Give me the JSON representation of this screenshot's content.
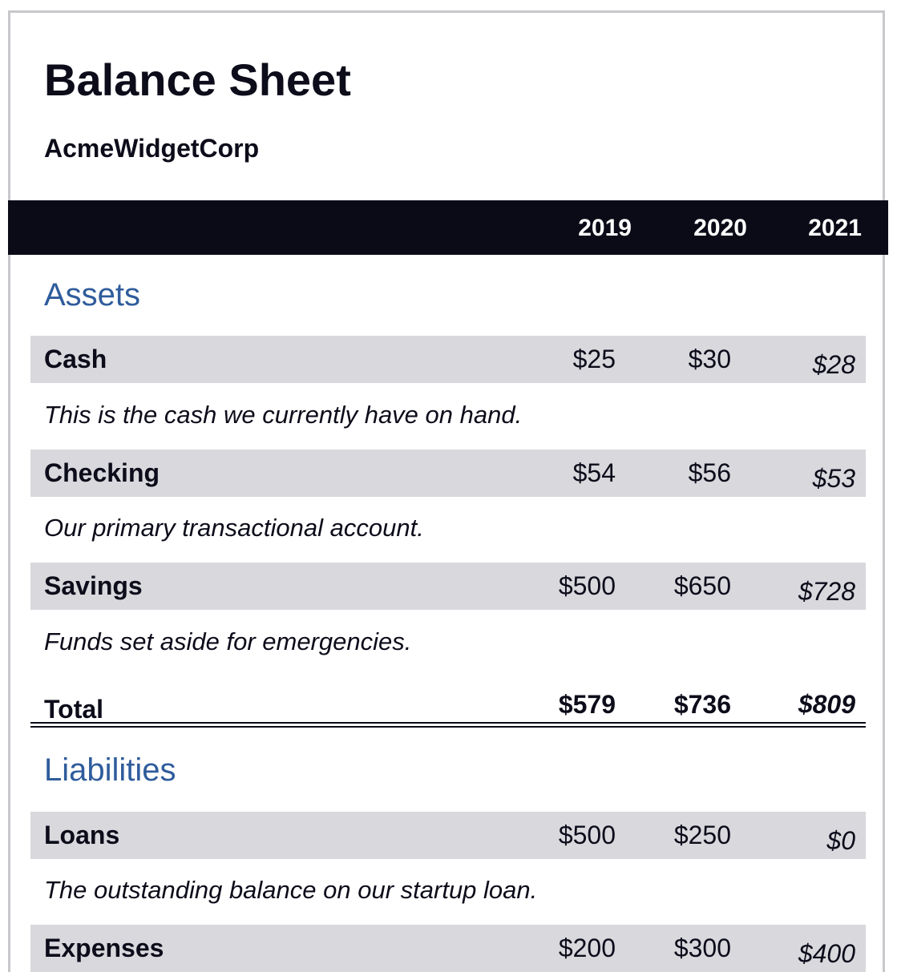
{
  "header": {
    "title": "Balance Sheet",
    "company": "AcmeWidgetCorp"
  },
  "years": [
    "2019",
    "2020",
    "2021"
  ],
  "assets": {
    "title": "Assets",
    "rows": [
      {
        "label": "Cash",
        "values": [
          "$25",
          "$30",
          "$28"
        ],
        "note": "This is the cash we currently have on hand."
      },
      {
        "label": "Checking",
        "values": [
          "$54",
          "$56",
          "$53"
        ],
        "note": "Our primary transactional account."
      },
      {
        "label": "Savings",
        "values": [
          "$500",
          "$650",
          "$728"
        ],
        "note": "Funds set aside for emergencies."
      }
    ],
    "total": {
      "label": "Total",
      "values": [
        "$579",
        "$736",
        "$809"
      ]
    }
  },
  "liabilities": {
    "title": "Liabilities",
    "rows": [
      {
        "label": "Loans",
        "values": [
          "$500",
          "$250",
          "$0"
        ],
        "note": "The outstanding balance on our startup loan."
      },
      {
        "label": "Expenses",
        "values": [
          "$200",
          "$300",
          "$400"
        ]
      }
    ]
  },
  "colors": {
    "header_bg": "#0b0b18",
    "row_bg": "#d8d8dd",
    "section_title": "#2f5c9c"
  }
}
